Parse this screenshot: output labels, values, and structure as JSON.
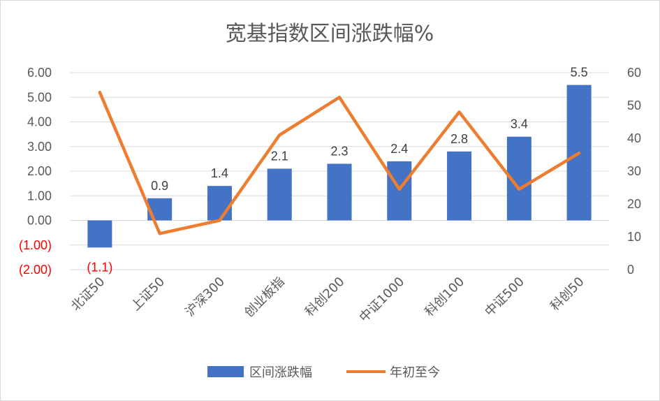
{
  "chart_data": {
    "type": "bar",
    "title": "宽基指数区间涨跌幅%",
    "categories": [
      "北证50",
      "上证50",
      "沪深300",
      "创业板指",
      "科创200",
      "中证1000",
      "科创100",
      "中证500",
      "科创50"
    ],
    "series": [
      {
        "name": "区间涨跌幅",
        "type": "bar",
        "axis": "left",
        "color": "#4472c4",
        "values": [
          -1.1,
          0.9,
          1.4,
          2.1,
          2.3,
          2.4,
          2.8,
          3.4,
          5.5
        ],
        "labels": [
          "(1.1)",
          "0.9",
          "1.4",
          "2.1",
          "2.3",
          "2.4",
          "2.8",
          "3.4",
          "5.5"
        ]
      },
      {
        "name": "年初至今",
        "type": "line",
        "axis": "right",
        "color": "#ed7d31",
        "values": [
          54,
          11,
          15,
          41,
          52.5,
          24.5,
          48,
          24.5,
          35.5
        ]
      }
    ],
    "y_left": {
      "ylim": [
        -2,
        6
      ],
      "ticks": [
        6,
        5,
        4,
        3,
        2,
        1,
        0,
        -1,
        -2
      ],
      "tick_labels": [
        "6.00",
        "5.00",
        "4.00",
        "3.00",
        "2.00",
        "1.00",
        "0.00",
        "(1.00)",
        "(2.00)"
      ],
      "negative_color": "#ff0000"
    },
    "y_right": {
      "ylim": [
        0,
        60
      ],
      "ticks": [
        60,
        50,
        40,
        30,
        20,
        10,
        0
      ],
      "tick_labels": [
        "60",
        "50",
        "40",
        "30",
        "20",
        "10",
        "0"
      ]
    },
    "grid": true,
    "legend_position": "bottom"
  }
}
